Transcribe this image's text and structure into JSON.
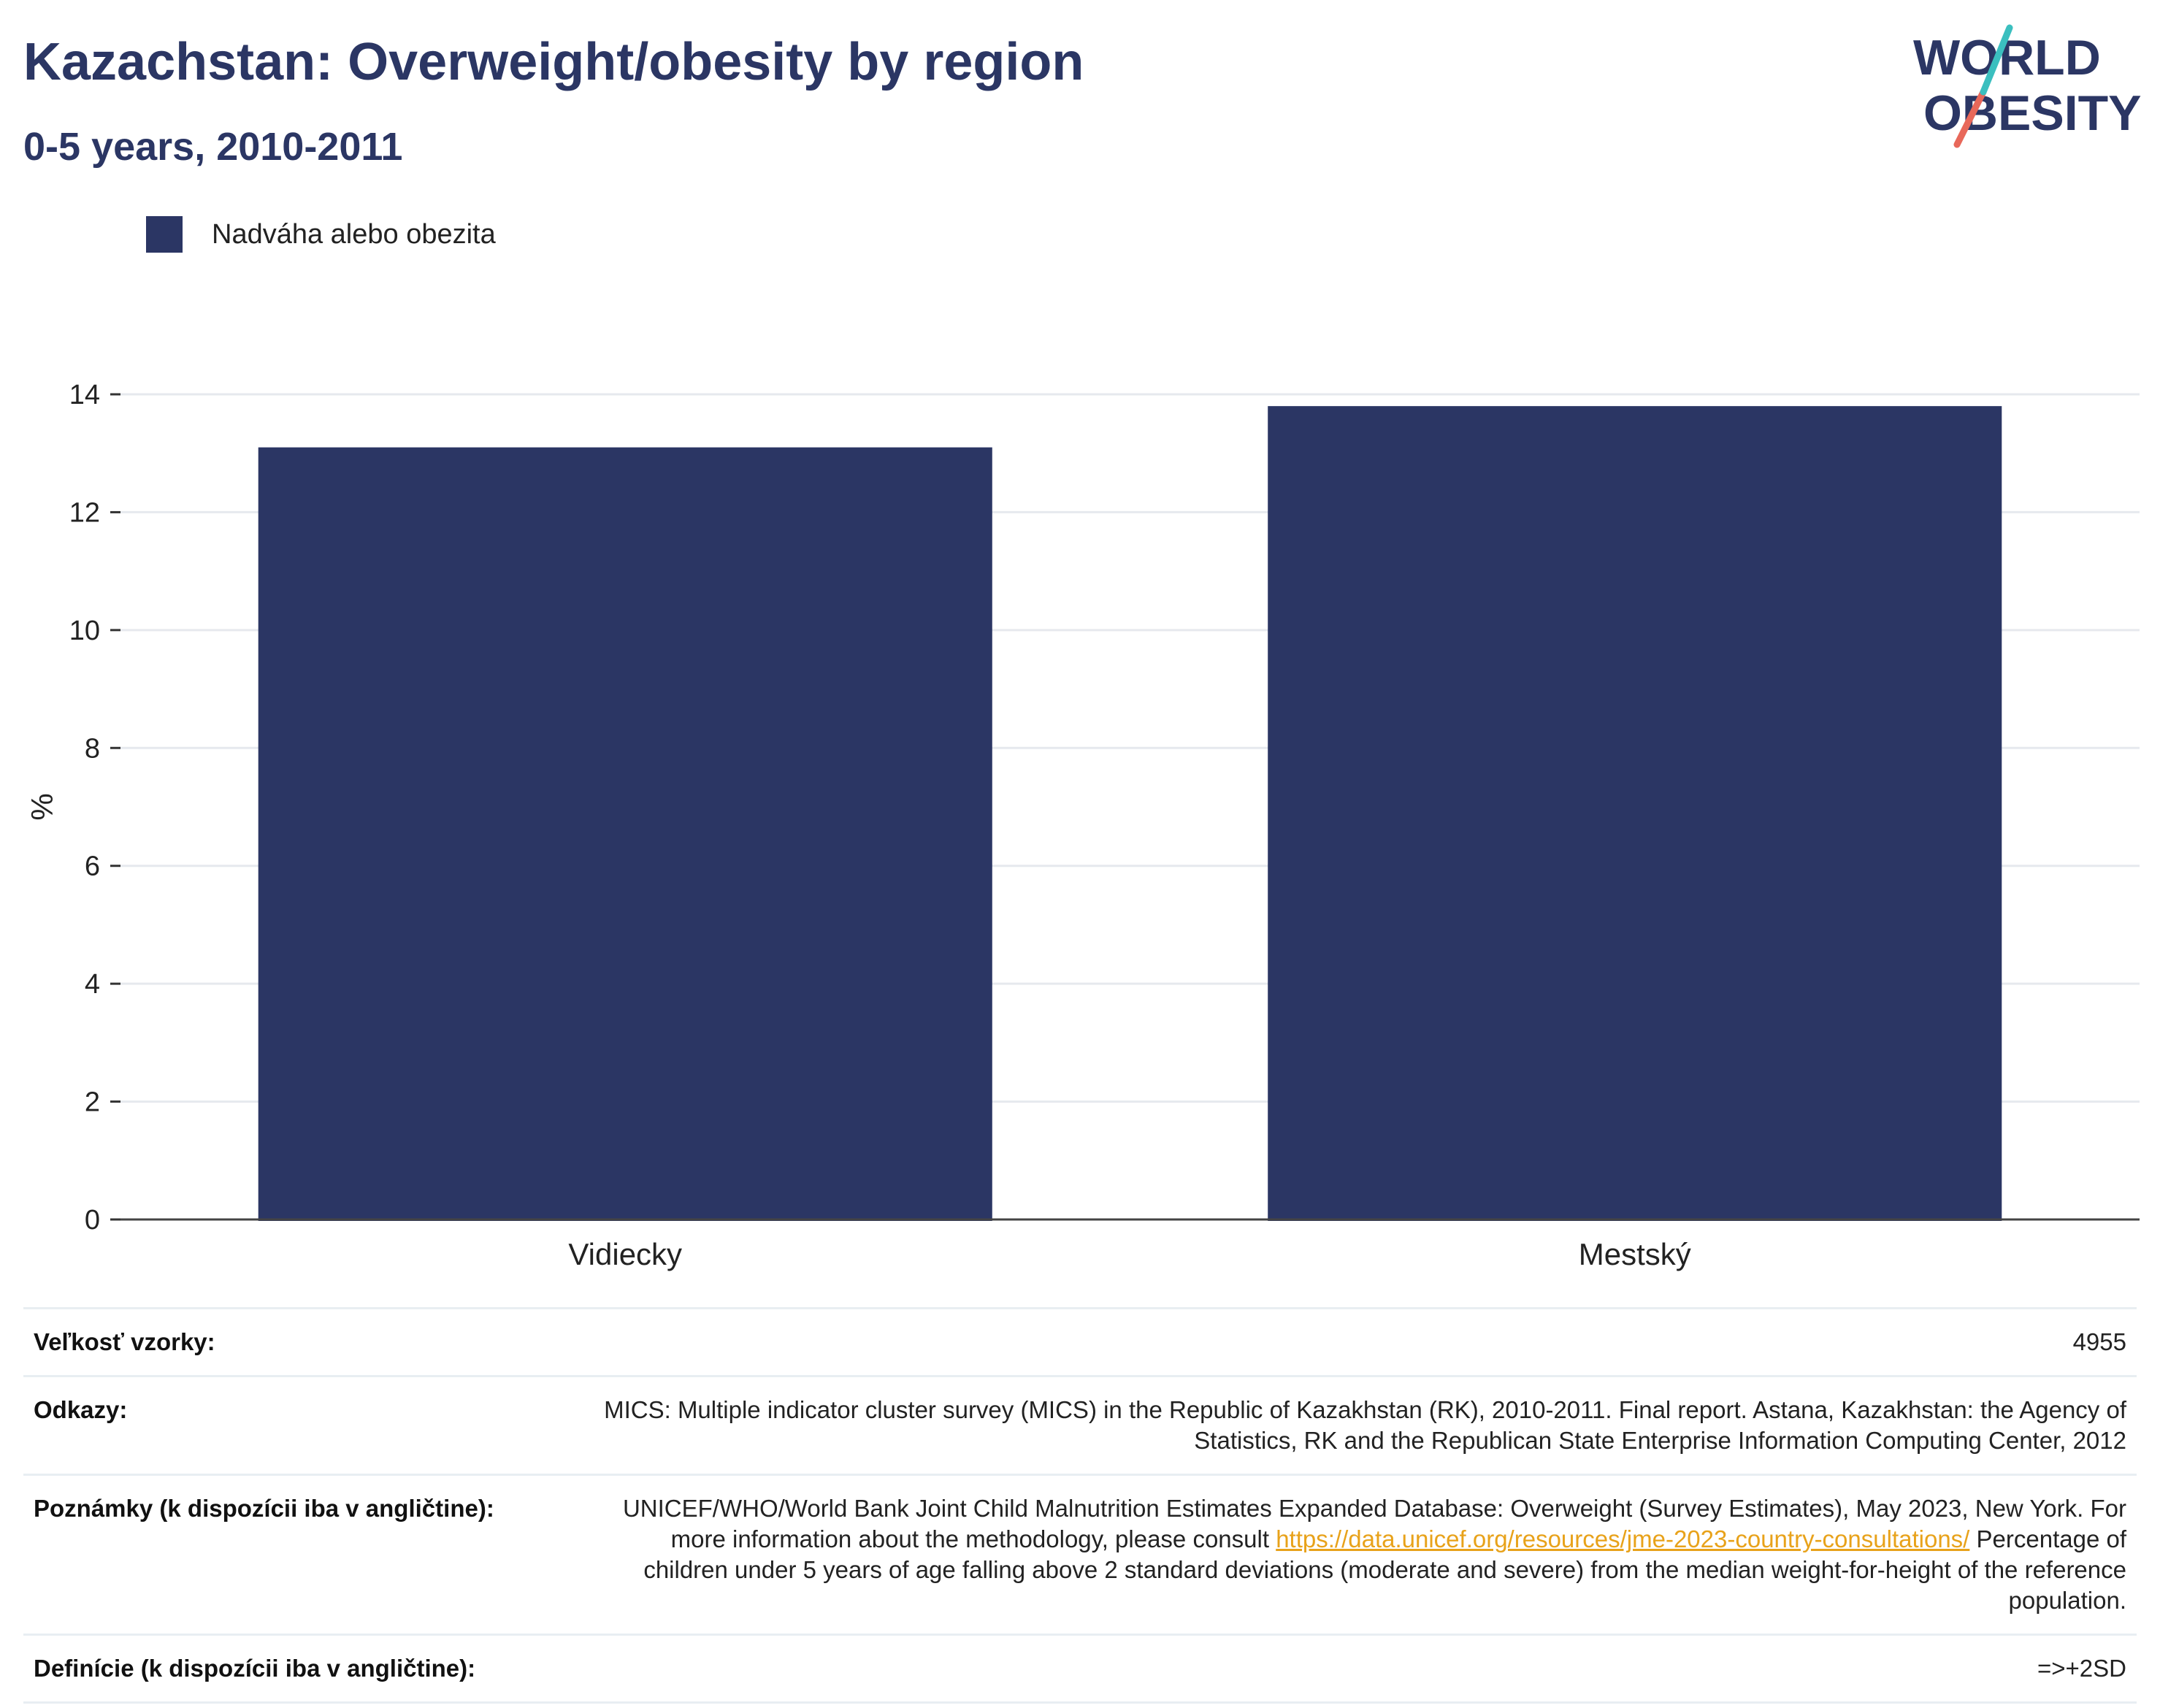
{
  "header": {
    "title": "Kazachstan: Overweight/obesity by region",
    "subtitle": "0-5 years, 2010-2011"
  },
  "logo": {
    "line1": "WORLD",
    "line2": "OBESITY",
    "colors": {
      "text": "#2b3664",
      "teal": "#3bbfbf",
      "coral": "#e8685a"
    }
  },
  "legend": {
    "label": "Nadváha alebo obezita",
    "color": "#2b3664"
  },
  "chart_data": {
    "type": "bar",
    "categories": [
      "Vidiecky",
      "Mestský"
    ],
    "series": [
      {
        "name": "Nadváha alebo obezita",
        "values": [
          13.1,
          13.8
        ],
        "color": "#2b3664"
      }
    ],
    "ylabel": "%",
    "ylim": [
      0,
      14
    ],
    "yticks": [
      0,
      2,
      4,
      6,
      8,
      10,
      12,
      14
    ],
    "grid": true
  },
  "info": {
    "sample_size": {
      "label": "Veľkosť vzorky:",
      "value": "4955"
    },
    "references": {
      "label": "Odkazy:",
      "value": "MICS: Multiple indicator cluster survey (MICS) in the Republic of Kazakhstan (RK), 2010-2011. Final report. Astana, Kazakhstan: the Agency of Statistics, RK and the Republican State Enterprise Information Computing Center, 2012"
    },
    "notes": {
      "label": "Poznámky (k dispozícii iba v angličtine):",
      "text_before": "UNICEF/WHO/World Bank Joint Child Malnutrition Estimates Expanded Database: Overweight (Survey Estimates), May 2023, New York. For more information about the methodology, please consult ",
      "link": "https://data.unicef.org/resources/jme-2023-country-consultations/",
      "text_after": " Percentage of children under 5 years of age falling above 2 standard deviations (moderate and severe) from the median weight-for-height of the reference population."
    },
    "definitions": {
      "label": "Definície (k dispozícii iba v angličtine):",
      "value": "=>+2SD"
    }
  }
}
